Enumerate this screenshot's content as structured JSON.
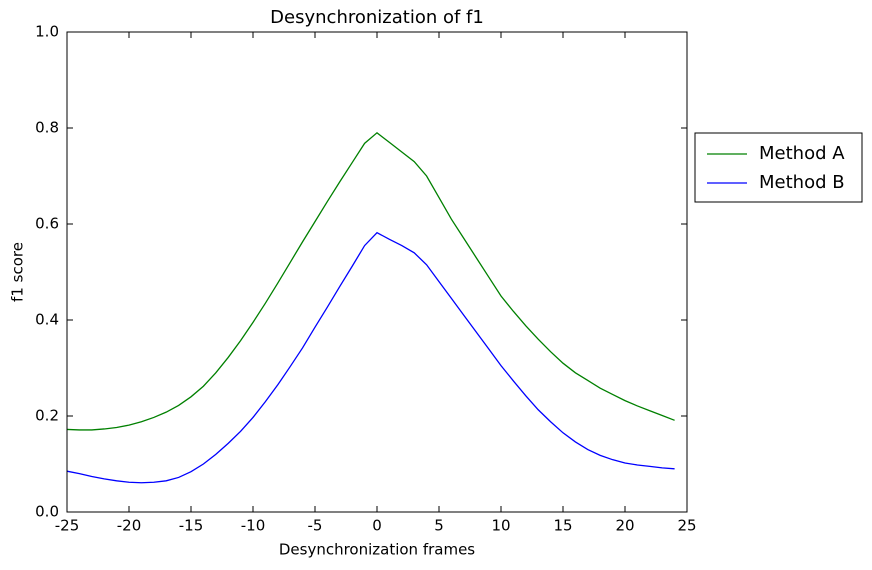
{
  "chart_data": {
    "type": "line",
    "title": "Desynchronization of f1",
    "xlabel": "Desynchronization frames",
    "ylabel": "f1 score",
    "x": [
      -25,
      -24,
      -23,
      -22,
      -21,
      -20,
      -19,
      -18,
      -17,
      -16,
      -15,
      -14,
      -13,
      -12,
      -11,
      -10,
      -9,
      -8,
      -7,
      -6,
      -5,
      -4,
      -3,
      -2,
      -1,
      0,
      1,
      2,
      3,
      4,
      5,
      6,
      7,
      8,
      9,
      10,
      11,
      12,
      13,
      14,
      15,
      16,
      17,
      18,
      19,
      20,
      21,
      22,
      23,
      24
    ],
    "series": [
      {
        "name": "Method A",
        "color": "#008000",
        "values": [
          0.172,
          0.171,
          0.171,
          0.173,
          0.176,
          0.181,
          0.188,
          0.197,
          0.208,
          0.222,
          0.24,
          0.262,
          0.29,
          0.322,
          0.357,
          0.395,
          0.435,
          0.477,
          0.52,
          0.563,
          0.605,
          0.647,
          0.688,
          0.728,
          0.768,
          0.79,
          0.77,
          0.75,
          0.73,
          0.7,
          0.655,
          0.61,
          0.57,
          0.53,
          0.49,
          0.45,
          0.418,
          0.388,
          0.36,
          0.334,
          0.31,
          0.29,
          0.274,
          0.258,
          0.245,
          0.232,
          0.221,
          0.211,
          0.201,
          0.191
        ]
      },
      {
        "name": "Method B",
        "color": "#0000ff",
        "values": [
          0.085,
          0.08,
          0.074,
          0.069,
          0.065,
          0.062,
          0.061,
          0.062,
          0.065,
          0.072,
          0.084,
          0.1,
          0.12,
          0.143,
          0.168,
          0.197,
          0.23,
          0.265,
          0.303,
          0.342,
          0.385,
          0.427,
          0.47,
          0.512,
          0.555,
          0.582,
          0.568,
          0.555,
          0.54,
          0.515,
          0.48,
          0.445,
          0.41,
          0.375,
          0.34,
          0.305,
          0.273,
          0.242,
          0.213,
          0.188,
          0.165,
          0.146,
          0.13,
          0.118,
          0.109,
          0.102,
          0.098,
          0.095,
          0.092,
          0.09
        ]
      }
    ],
    "xlim": [
      -25,
      25
    ],
    "xticks": [
      -25,
      -20,
      -15,
      -10,
      -5,
      0,
      5,
      10,
      15,
      20,
      25
    ],
    "ylim": [
      0,
      1
    ],
    "yticks": [
      {
        "value": 0,
        "label": "0.0"
      },
      0.2,
      0.4,
      0.6,
      0.8,
      {
        "value": 1,
        "label": "1.0"
      }
    ],
    "grid": false,
    "legend": "outside right"
  }
}
